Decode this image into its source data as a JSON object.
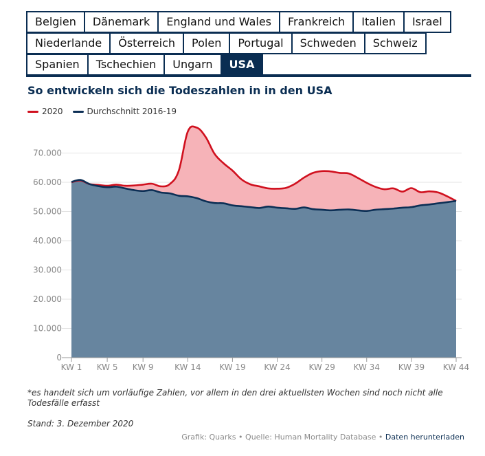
{
  "tabs": {
    "rows": [
      [
        "Belgien",
        "Dänemark",
        "England und Wales",
        "Frankreich",
        "Italien",
        "Israel"
      ],
      [
        "Niederlande",
        "Österreich",
        "Polen",
        "Portugal",
        "Schweden",
        "Schweiz"
      ],
      [
        "Spanien",
        "Tschechien",
        "Ungarn",
        "USA"
      ]
    ],
    "active": "USA"
  },
  "colors": {
    "red": "#d0101e",
    "navy": "#0c2f55",
    "red_fill": "#f6b3b8",
    "navy_fill": "#67859f",
    "accent": "#0a2d52"
  },
  "chart_data": {
    "type": "area",
    "title": "So entwickeln sich die Todeszahlen in in den USA",
    "legend_position": "top-left",
    "grid": true,
    "ylim": [
      0,
      80000
    ],
    "y_ticks": [
      "0",
      "10.000",
      "20.000",
      "30.000",
      "40.000",
      "50.000",
      "60.000",
      "70.000"
    ],
    "y_tick_values": [
      0,
      10000,
      20000,
      30000,
      40000,
      50000,
      60000,
      70000
    ],
    "x_ticks": [
      "KW 1",
      "KW 5",
      "KW 9",
      "KW 14",
      "KW 19",
      "KW 24",
      "KW 29",
      "KW 34",
      "KW 39",
      "KW 44"
    ],
    "x_tick_weeks": [
      1,
      5,
      9,
      14,
      19,
      24,
      29,
      34,
      39,
      44
    ],
    "x": [
      1,
      2,
      3,
      4,
      5,
      6,
      7,
      8,
      9,
      10,
      11,
      12,
      13,
      14,
      15,
      16,
      17,
      18,
      19,
      20,
      21,
      22,
      23,
      24,
      25,
      26,
      27,
      28,
      29,
      30,
      31,
      32,
      33,
      34,
      35,
      36,
      37,
      38,
      39,
      40,
      41,
      42,
      43,
      44
    ],
    "series": [
      {
        "name": "2020",
        "values": [
          60000,
          60600,
          59400,
          59100,
          58800,
          59200,
          58800,
          58900,
          59200,
          59500,
          58600,
          59400,
          64000,
          77300,
          78700,
          75500,
          69700,
          66500,
          64000,
          61000,
          59300,
          58600,
          57900,
          57800,
          58100,
          59500,
          61600,
          63200,
          63800,
          63700,
          63200,
          63000,
          61500,
          59800,
          58400,
          57600,
          57900,
          56800,
          58000,
          56600,
          56900,
          56500,
          55200,
          53600
        ]
      },
      {
        "name": "Durchschnitt 2016-19",
        "values": [
          60100,
          60800,
          59400,
          58700,
          58300,
          58500,
          57900,
          57300,
          57000,
          57300,
          56500,
          56200,
          55400,
          55200,
          54600,
          53500,
          52900,
          52800,
          52100,
          51800,
          51500,
          51200,
          51700,
          51300,
          51100,
          50900,
          51400,
          50800,
          50600,
          50400,
          50600,
          50700,
          50400,
          50200,
          50600,
          50800,
          51000,
          51300,
          51500,
          52100,
          52400,
          52800,
          53200,
          53600
        ]
      }
    ]
  },
  "note": "*es handelt sich um vorläufige Zahlen, vor allem in den drei aktuellsten Wochen sind noch nicht alle Todesfälle erfasst",
  "stand": "Stand: 3. Dezember 2020",
  "footer": {
    "credit": "Grafik: Quarks",
    "separator": "•",
    "source": "Quelle: Human Mortality Database",
    "download": "Daten herunterladen"
  }
}
